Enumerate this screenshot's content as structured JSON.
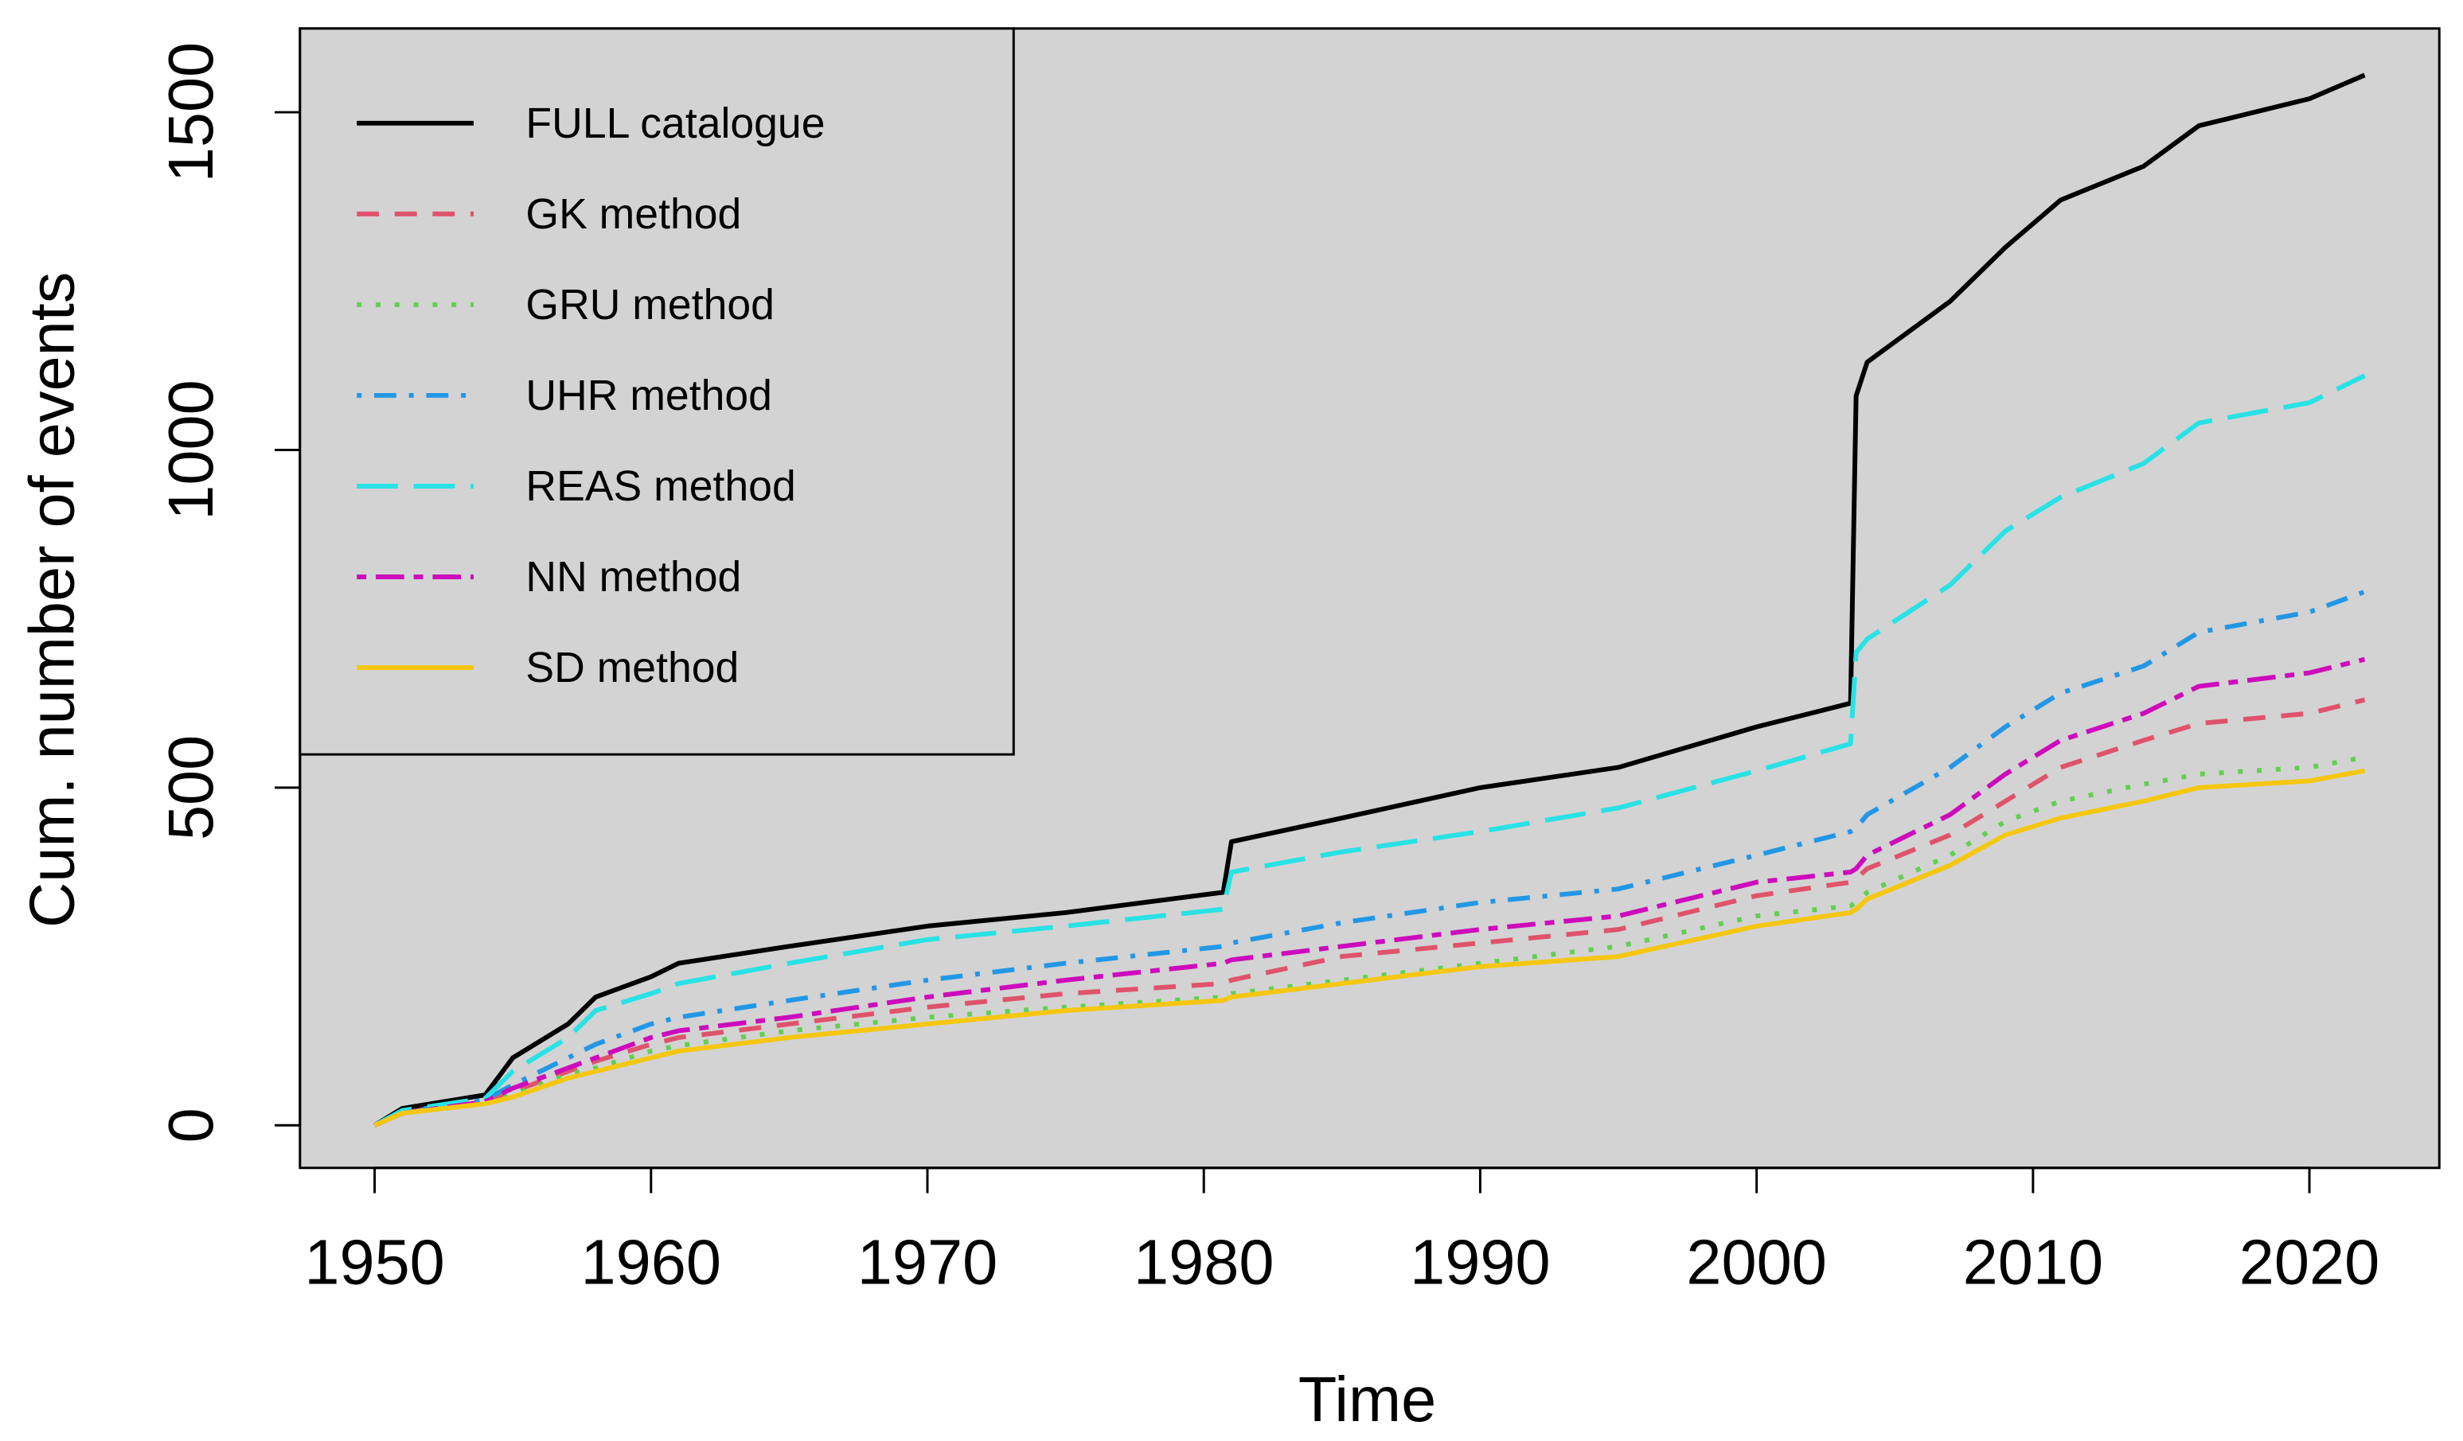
{
  "chart_data": {
    "type": "line",
    "xlabel": "Time",
    "ylabel": "Cum. number of events",
    "x": [
      1950,
      1951,
      1954,
      1955,
      1957,
      1958,
      1960,
      1961,
      1965,
      1970,
      1975,
      1980.7,
      1981,
      1985,
      1990,
      1995,
      2000,
      2003.4,
      2003.6,
      2004,
      2007,
      2009,
      2011,
      2014,
      2016,
      2020,
      2022
    ],
    "series": [
      {
        "name": "FULL catalogue",
        "color": "#000000",
        "linestyle": "solid",
        "values": [
          0,
          25,
          45,
          100,
          150,
          190,
          220,
          240,
          265,
          295,
          315,
          345,
          420,
          455,
          500,
          530,
          590,
          625,
          1080,
          1130,
          1220,
          1300,
          1370,
          1420,
          1480,
          1520,
          1555
        ]
      },
      {
        "name": "GK method",
        "color": "#DF536B",
        "linestyle": "dashed",
        "values": [
          0,
          18,
          35,
          50,
          80,
          95,
          120,
          130,
          150,
          175,
          195,
          210,
          215,
          250,
          270,
          290,
          340,
          360,
          365,
          380,
          430,
          480,
          530,
          570,
          595,
          610,
          630
        ]
      },
      {
        "name": "GRU method",
        "color": "#61D04F",
        "linestyle": "dotted",
        "values": [
          0,
          18,
          33,
          45,
          75,
          85,
          110,
          118,
          140,
          160,
          175,
          190,
          195,
          215,
          240,
          265,
          310,
          325,
          330,
          345,
          400,
          450,
          480,
          505,
          520,
          530,
          545
        ]
      },
      {
        "name": "UHR method",
        "color": "#2297E6",
        "linestyle": "dotdash",
        "values": [
          0,
          20,
          38,
          60,
          100,
          120,
          150,
          160,
          185,
          215,
          240,
          265,
          270,
          300,
          330,
          350,
          400,
          435,
          440,
          460,
          530,
          590,
          640,
          680,
          730,
          760,
          790
        ]
      },
      {
        "name": "REAS method",
        "color": "#28E2E5",
        "linestyle": "longdash",
        "values": [
          0,
          22,
          40,
          80,
          130,
          170,
          195,
          210,
          240,
          275,
          295,
          320,
          375,
          405,
          435,
          470,
          525,
          565,
          700,
          720,
          800,
          880,
          930,
          980,
          1040,
          1070,
          1110
        ]
      },
      {
        "name": "NN method",
        "color": "#CD0BBC",
        "linestyle": "twodash",
        "values": [
          0,
          18,
          35,
          55,
          85,
          100,
          130,
          140,
          160,
          190,
          215,
          240,
          245,
          265,
          290,
          310,
          360,
          375,
          380,
          400,
          460,
          520,
          570,
          610,
          650,
          670,
          690
        ]
      },
      {
        "name": "SD method",
        "color": "#F5C710",
        "linestyle": "solid",
        "values": [
          0,
          18,
          32,
          42,
          70,
          80,
          100,
          110,
          130,
          150,
          170,
          185,
          190,
          210,
          235,
          250,
          295,
          315,
          320,
          335,
          385,
          430,
          455,
          480,
          500,
          510,
          525
        ]
      }
    ],
    "xlim": [
      1947.3,
      2024.7
    ],
    "xticks": [
      1950,
      1960,
      1970,
      1980,
      1990,
      2000,
      2010,
      2020
    ],
    "ylim": [
      -63,
      1624
    ],
    "yticks": [
      0,
      500,
      1000,
      1500
    ],
    "legend": "topleft",
    "plot_background": "#d3d3d3"
  }
}
